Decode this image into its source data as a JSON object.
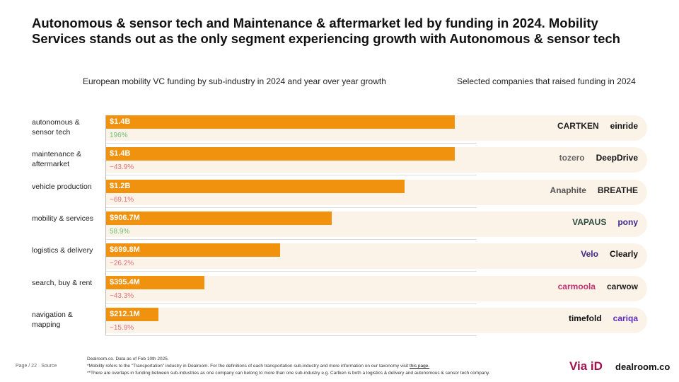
{
  "title": "Autonomous & sensor tech and Maintenance & aftermarket led by funding in 2024. Mobility Services stands out as the only segment experiencing growth with Autonomous & sensor tech",
  "left_subtitle": "European mobility VC funding by sub-industry in 2024 and year over year growth",
  "right_subtitle": "Selected companies that raised funding in 2024",
  "colors": {
    "bar": "#f0920e",
    "positive": "#6fbf73",
    "negative": "#e0707a",
    "band": "#fcf3e8"
  },
  "chart_data": {
    "type": "bar",
    "orientation": "horizontal",
    "title": "European mobility VC funding by sub-industry in 2024 and year over year growth",
    "unit": "USD billions",
    "xlim": [
      0,
      1.4
    ],
    "categories": [
      "autonomous & sensor tech",
      "maintenance & aftermarket",
      "vehicle production",
      "mobility & services",
      "logistics & delivery",
      "search, buy & rent",
      "navigation & mapping"
    ],
    "values": [
      1.4,
      1.4,
      1.2,
      0.9067,
      0.6998,
      0.3954,
      0.2121
    ],
    "value_labels": [
      "$1.4B",
      "$1.4B",
      "$1.2B",
      "$906.7M",
      "$699.8M",
      "$395.4M",
      "$212.1M"
    ],
    "growth_labels": [
      "196%",
      "−43.9%",
      "−69.1%",
      "58.9%",
      "−26.2%",
      "−43.3%",
      "−15.9%"
    ],
    "growth": [
      196,
      -43.9,
      -69.1,
      58.9,
      -26.2,
      -43.3,
      -15.9
    ],
    "companies": [
      [
        "CARTKEN",
        "einride"
      ],
      [
        "tozero",
        "DeepDrive"
      ],
      [
        "Anaphite",
        "BREATHE"
      ],
      [
        "VAPAUS",
        "pony"
      ],
      [
        "Velo",
        "Clearly"
      ],
      [
        "carmoola",
        "carwow"
      ],
      [
        "timefold",
        "cariqa"
      ]
    ]
  },
  "footer": {
    "line1": "Dealroom.co. Data as of Feb 10th 2025.",
    "line2": "*Mobility refers to the \"Transportation\" industry in Dealroom. For the definitions of each transportation sub-industry and more information on our taxonomy visit",
    "link": "this page.",
    "line3": "**There are overlaps in funding between sub-industries as one company can belong to more than one sub-industry e.g. Cartken is both a logistics & delivery and autonomous & sensor tech company.",
    "page": "Page / 22 · Source"
  },
  "brand": {
    "viaid": "Via iD",
    "dealroom": "dealroom.co"
  }
}
